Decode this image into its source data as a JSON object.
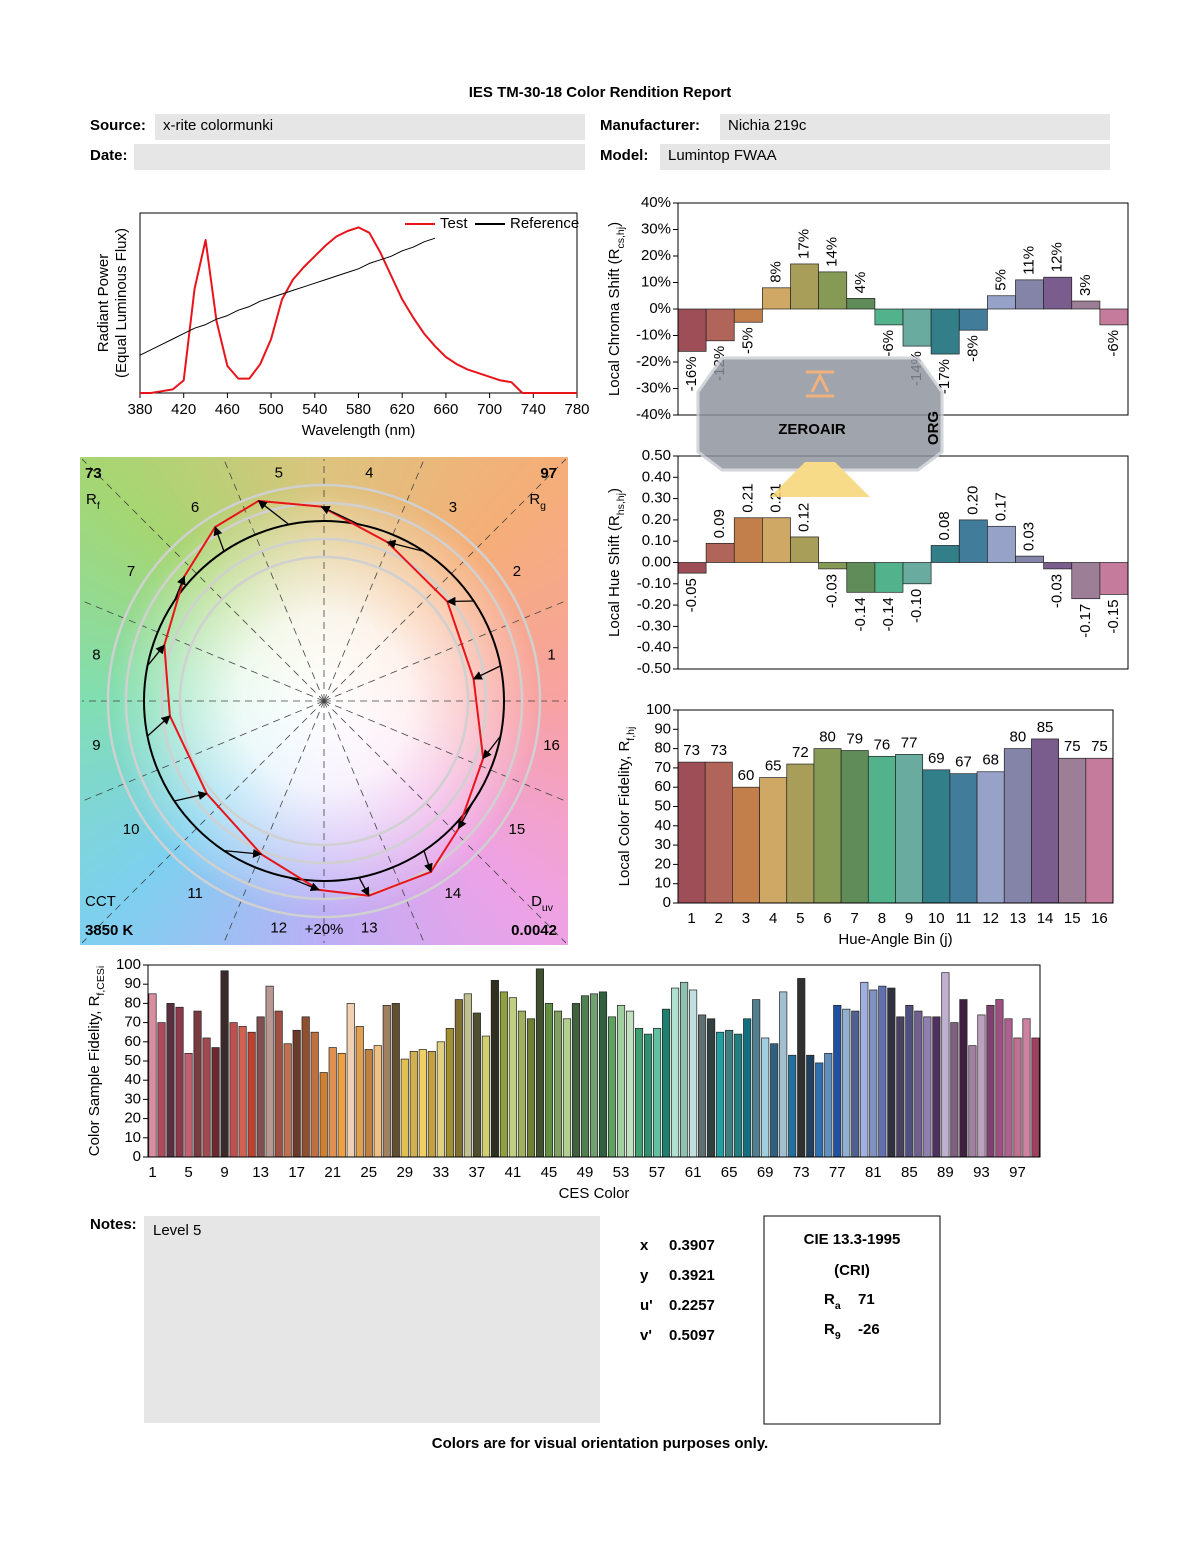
{
  "header": {
    "title": "IES TM-30-18 Color Rendition Report",
    "fields": [
      {
        "label": "Source:",
        "value": "x-rite colormunki"
      },
      {
        "label": "Manufacturer:",
        "value": "Nichia 219c"
      },
      {
        "label": "Date:"
      },
      {
        "label": "Model:",
        "value": "Lumintop FWAA"
      }
    ]
  },
  "chart_data": [
    {
      "type": "line",
      "xlabel": "Wavelength (nm)",
      "ylabel": "Radiant Power",
      "ylabel2": "(Equal Luminous Flux)",
      "xlim": [
        380,
        780
      ],
      "xticks": [
        380,
        420,
        460,
        500,
        540,
        580,
        620,
        660,
        700,
        740,
        780
      ],
      "ylim": [
        0,
        1
      ],
      "legend": "upper right",
      "x": [
        380,
        390,
        400,
        410,
        420,
        430,
        440,
        450,
        460,
        470,
        480,
        490,
        500,
        510,
        520,
        530,
        540,
        550,
        560,
        570,
        580,
        590,
        600,
        610,
        620,
        630,
        640,
        650,
        660,
        670,
        680,
        690,
        700,
        710,
        720,
        730,
        740,
        750,
        760,
        770,
        780
      ],
      "series": [
        {
          "name": "Test",
          "color": "#e8141a",
          "values": [
            0,
            0,
            0.01,
            0.02,
            0.07,
            0.58,
            0.85,
            0.4,
            0.15,
            0.08,
            0.08,
            0.16,
            0.3,
            0.52,
            0.63,
            0.7,
            0.76,
            0.82,
            0.87,
            0.9,
            0.92,
            0.89,
            0.78,
            0.65,
            0.52,
            0.42,
            0.33,
            0.26,
            0.2,
            0.16,
            0.13,
            0.11,
            0.09,
            0.07,
            0.06,
            0,
            0,
            0,
            0,
            0,
            0
          ]
        },
        {
          "name": "Reference",
          "color": "#000000",
          "values": [
            0.21,
            0.24,
            0.27,
            0.3,
            0.33,
            0.36,
            0.38,
            0.41,
            0.43,
            0.46,
            0.48,
            0.51,
            0.53,
            0.55,
            0.57,
            0.59,
            0.61,
            0.63,
            0.65,
            0.67,
            0.69,
            0.72,
            0.74,
            0.76,
            0.79,
            0.81,
            0.84,
            0.86,
            null,
            null,
            null,
            null,
            null,
            null,
            null,
            null,
            null,
            null,
            null,
            null,
            null
          ]
        }
      ]
    },
    {
      "type": "vector",
      "rf": 73,
      "rf_label": "R",
      "rf_sub": "f",
      "rg": 97,
      "rg_label": "R",
      "rg_sub": "g",
      "cct_label": "CCT",
      "cct": "3850 K",
      "duv_label": "D",
      "duv_sub": "uv",
      "duv": 0.0042,
      "bins": [
        "1",
        "2",
        "3",
        "4",
        "5",
        "6",
        "7",
        "8",
        "9",
        "10",
        "11",
        "12",
        "13",
        "14",
        "15",
        "16"
      ],
      "scale_label": "+20%"
    },
    {
      "type": "bar",
      "ylabel": "Local Chroma Shift (R",
      "ylabel_sub": "cs,hj",
      "ylabel_end": ")",
      "ylim": [
        -40,
        40
      ],
      "yticks": [
        {
          "value": 40,
          "label": "40%"
        },
        {
          "value": 30,
          "label": "30%"
        },
        {
          "value": 20,
          "label": "20%"
        },
        {
          "value": 10,
          "label": "10%"
        },
        {
          "value": 0,
          "label": "0%"
        },
        {
          "value": -10,
          "label": "-10%"
        },
        {
          "value": -20,
          "label": "-20%"
        },
        {
          "value": -30,
          "label": "-30%"
        },
        {
          "value": -40,
          "label": "-40%"
        }
      ],
      "values": [
        -16,
        -12,
        -5,
        8,
        17,
        14,
        4,
        -6,
        -14,
        -17,
        -8,
        5,
        11,
        12,
        3,
        -6
      ],
      "value_labels": [
        "-16%",
        "-12%",
        "-5%",
        "8%",
        "17%",
        "14%",
        "4%",
        "-6%",
        "-14%",
        "-17%",
        "-8%",
        "5%",
        "11%",
        "12%",
        "3%",
        "-6%"
      ],
      "colors": [
        "#9e4e57",
        "#b0645a",
        "#c27e4b",
        "#cfa865",
        "#a89e5a",
        "#879a55",
        "#5f8c58",
        "#52b28c",
        "#6aaba0",
        "#327f8a",
        "#417d9b",
        "#97a2c9",
        "#8484a8",
        "#7a5c8d",
        "#9c7e96",
        "#c47b9c"
      ]
    },
    {
      "type": "bar",
      "ylabel": "Local Hue Shift (R",
      "ylabel_sub": "hs,hj",
      "ylabel_end": ")",
      "ylim": [
        -0.5,
        0.5
      ],
      "yticks": [
        {
          "value": 0.5,
          "label": "0.50"
        },
        {
          "value": 0.4,
          "label": "0.40"
        },
        {
          "value": 0.3,
          "label": "0.30"
        },
        {
          "value": 0.2,
          "label": "0.20"
        },
        {
          "value": 0.1,
          "label": "0.10"
        },
        {
          "value": 0,
          "label": "0.00"
        },
        {
          "value": -0.1,
          "label": "-0.10"
        },
        {
          "value": -0.2,
          "label": "-0.20"
        },
        {
          "value": -0.3,
          "label": "-0.30"
        },
        {
          "value": -0.4,
          "label": "-0.40"
        },
        {
          "value": -0.5,
          "label": "-0.50"
        }
      ],
      "values": [
        -0.05,
        0.09,
        0.21,
        0.21,
        0.12,
        -0.03,
        -0.14,
        -0.14,
        -0.1,
        0.08,
        0.2,
        0.17,
        0.03,
        -0.03,
        -0.17,
        -0.15
      ],
      "value_labels": [
        "-0.05",
        "0.09",
        "0.21",
        "0.21",
        "0.12",
        "-0.03",
        "-0.14",
        "-0.14",
        "-0.10",
        "0.08",
        "0.20",
        "0.17",
        "0.03",
        "-0.03",
        "-0.17",
        "-0.15"
      ],
      "colors": [
        "#9e4e57",
        "#b0645a",
        "#c27e4b",
        "#cfa865",
        "#a89e5a",
        "#879a55",
        "#5f8c58",
        "#52b28c",
        "#6aaba0",
        "#327f8a",
        "#417d9b",
        "#97a2c9",
        "#8484a8",
        "#7a5c8d",
        "#9c7e96",
        "#c47b9c"
      ]
    },
    {
      "type": "bar",
      "ylabel": "Local Color Fidelity, R",
      "ylabel_sub": "f,hj",
      "xlabel": "Hue-Angle Bin (j)",
      "ylim": [
        0,
        100
      ],
      "yticks": [
        0,
        10,
        20,
        30,
        40,
        50,
        60,
        70,
        80,
        90,
        100
      ],
      "categories": [
        "1",
        "2",
        "3",
        "4",
        "5",
        "6",
        "7",
        "8",
        "9",
        "10",
        "11",
        "12",
        "13",
        "14",
        "15",
        "16"
      ],
      "values": [
        73,
        73,
        60,
        65,
        72,
        80,
        79,
        76,
        77,
        69,
        67,
        68,
        80,
        85,
        75,
        75
      ],
      "colors": [
        "#9e4e57",
        "#b0645a",
        "#c27e4b",
        "#cfa865",
        "#a89e5a",
        "#879a55",
        "#5f8c58",
        "#52b28c",
        "#6aaba0",
        "#327f8a",
        "#417d9b",
        "#97a2c9",
        "#8484a8",
        "#7a5c8d",
        "#9c7e96",
        "#c47b9c"
      ]
    },
    {
      "type": "bar",
      "ylabel": "Color Sample Fidelity, R",
      "ylabel_sub": "f,CESi",
      "xlabel": "CES Color",
      "ylim": [
        0,
        100
      ],
      "yticks": [
        0,
        10,
        20,
        30,
        40,
        50,
        60,
        70,
        80,
        90,
        100
      ],
      "categories": [
        "1",
        null,
        null,
        null,
        "5",
        null,
        null,
        null,
        "9",
        null,
        null,
        null,
        "13",
        null,
        null,
        null,
        "17",
        null,
        null,
        null,
        "21",
        null,
        null,
        null,
        "25",
        null,
        null,
        null,
        "29",
        null,
        null,
        null,
        "33",
        null,
        null,
        null,
        "37",
        null,
        null,
        null,
        "41",
        null,
        null,
        null,
        "45",
        null,
        null,
        null,
        "49",
        null,
        null,
        null,
        "53",
        null,
        null,
        null,
        "57",
        null,
        null,
        null,
        "61",
        null,
        null,
        null,
        "65",
        null,
        null,
        null,
        "69",
        null,
        null,
        null,
        "73",
        null,
        null,
        null,
        "77",
        null,
        null,
        null,
        "81",
        null,
        null,
        null,
        "85",
        null,
        null,
        null,
        "89",
        null,
        null,
        null,
        "93",
        null,
        null,
        null,
        "97",
        null,
        null
      ],
      "values": [
        85,
        70,
        80,
        78,
        54,
        76,
        62,
        57,
        97,
        70,
        68,
        65,
        73,
        89,
        76,
        59,
        66,
        73,
        65,
        44,
        57,
        54,
        80,
        68,
        56,
        58,
        79,
        80,
        51,
        55,
        56,
        55,
        60,
        67,
        82,
        85,
        75,
        63,
        92,
        86,
        83,
        76,
        72,
        98,
        80,
        76,
        72,
        80,
        84,
        85,
        86,
        73,
        79,
        76,
        67,
        64,
        67,
        77,
        88,
        91,
        87,
        74,
        72,
        65,
        66,
        64,
        72,
        82,
        62,
        59,
        86,
        53,
        93,
        53,
        49,
        54,
        79,
        77,
        76,
        91,
        87,
        89,
        88,
        73,
        79,
        76,
        73,
        73,
        96,
        70,
        82,
        58,
        74,
        79,
        82,
        72,
        62,
        72,
        62
      ],
      "colors": [
        "#d98ea0",
        "#b04a5a",
        "#5a3040",
        "#8a3a4a",
        "#c06070",
        "#7a3a40",
        "#a04a50",
        "#6a2a30",
        "#3a2a2a",
        "#c05050",
        "#d06050",
        "#c04030",
        "#805050",
        "#b89890",
        "#a05040",
        "#c07050",
        "#6a3a2a",
        "#905030",
        "#c07040",
        "#d08030",
        "#e09050",
        "#f0a040",
        "#f0d0b0",
        "#e0a050",
        "#c08040",
        "#f0c080",
        "#a08060",
        "#605030",
        "#e0c050",
        "#d0b050",
        "#f0d060",
        "#c0a040",
        "#e0d080",
        "#a09030",
        "#807030",
        "#c0c090",
        "#505030",
        "#d0d070",
        "#303020",
        "#90a040",
        "#c0d080",
        "#a0b060",
        "#708030",
        "#405030",
        "#609040",
        "#80a060",
        "#b0d090",
        "#406040",
        "#508050",
        "#70a070",
        "#306040",
        "#60a060",
        "#a0d0a0",
        "#c0e0c0",
        "#40a070",
        "#309070",
        "#60c0a0",
        "#208070",
        "#b0e0d0",
        "#90c0b0",
        "#c0e0e0",
        "#607070",
        "#304040",
        "#20a0a0",
        "#408080",
        "#208080",
        "#107080",
        "#508090",
        "#a0d0e0",
        "#306080",
        "#a0c0d0",
        "#2070a0",
        "#303030",
        "#204060",
        "#3070b0",
        "#6090c0",
        "#2050a0",
        "#90b0d0",
        "#506090",
        "#a0b0e0",
        "#8090c0",
        "#6070b0",
        "#303040",
        "#4a4060",
        "#505080",
        "#706090",
        "#9080b0",
        "#503060",
        "#c0b0d0",
        "#806080",
        "#402040",
        "#a080a0",
        "#c0a0c0",
        "#804070",
        "#a05080",
        "#b06090",
        "#c07090",
        "#d080a0",
        "#a04060"
      ]
    }
  ],
  "notes": {
    "label": "Notes:",
    "text": "Level 5"
  },
  "chromaticity": [
    {
      "label": "x",
      "value": 0.3907
    },
    {
      "label": "y",
      "value": 0.3921
    },
    {
      "label": "u'",
      "value": 0.2257
    },
    {
      "label": "v'",
      "value": 0.5097
    }
  ],
  "cri": {
    "title": "CIE 13.3-1995",
    "subtitle": "(CRI)",
    "indices": [
      {
        "label": "R",
        "sub": "a",
        "value": 71
      },
      {
        "label": "R",
        "sub": "9",
        "value": -26
      }
    ]
  },
  "footer": "Colors are for visual orientation purposes only.",
  "watermark": {
    "text": "ZEROAIR",
    "suffix": "ORG"
  }
}
